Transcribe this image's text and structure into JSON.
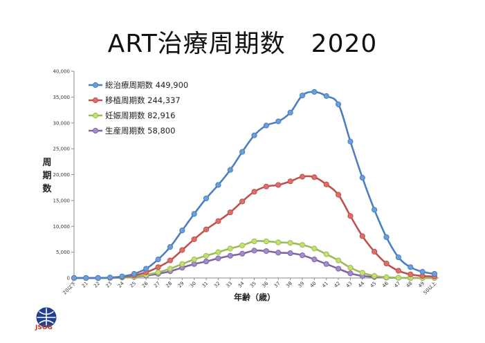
{
  "slide": {
    "title": "ART治療周期数　2020",
    "logo_text": "JSOG"
  },
  "chart_data": {
    "type": "line",
    "xlabel": "年齢（歳）",
    "ylabel": "周\n期\n数",
    "ylim": [
      0,
      40000
    ],
    "yticks": [
      "0",
      "5,000",
      "10,000",
      "15,000",
      "20,000",
      "25,000",
      "30,000",
      "35,000",
      "40,000"
    ],
    "categories": [
      "20以下",
      "21",
      "22",
      "23",
      "24",
      "25",
      "26",
      "27",
      "28",
      "29",
      "30",
      "31",
      "32",
      "33",
      "34",
      "35",
      "36",
      "37",
      "38",
      "39",
      "40",
      "41",
      "42",
      "43",
      "44",
      "45",
      "46",
      "47",
      "48",
      "49",
      "50以上"
    ],
    "grid": false,
    "legend_position": "top-left",
    "series": [
      {
        "name": "総治療周期数 449,900",
        "color": "#4a7fc1",
        "fill": "#6a9fd8",
        "values": [
          0,
          0,
          0,
          100,
          300,
          800,
          1800,
          3600,
          6000,
          9200,
          12400,
          15400,
          18000,
          20900,
          24400,
          27600,
          29500,
          30300,
          32000,
          35300,
          36000,
          35200,
          33600,
          26400,
          19400,
          13200,
          7900,
          4000,
          2100,
          1200,
          800
        ]
      },
      {
        "name": "移植周期数 244,337",
        "color": "#c0504d",
        "fill": "#d9706c",
        "values": [
          0,
          0,
          0,
          50,
          200,
          500,
          1100,
          2100,
          3400,
          5400,
          7500,
          9400,
          11000,
          12700,
          14800,
          16700,
          17700,
          18000,
          18700,
          19600,
          19500,
          18100,
          16100,
          12000,
          8100,
          5100,
          2800,
          1400,
          700,
          400,
          300
        ]
      },
      {
        "name": "妊娠周期数 82,916",
        "color": "#9bbb59",
        "fill": "#c6e06d",
        "values": [
          0,
          0,
          0,
          30,
          100,
          250,
          600,
          1100,
          1800,
          2700,
          3600,
          4300,
          5000,
          5700,
          6300,
          7100,
          7100,
          6900,
          6800,
          6400,
          5700,
          4600,
          3400,
          2000,
          1000,
          400,
          150,
          50,
          30,
          10,
          10
        ]
      },
      {
        "name": "生産周期数 58,800",
        "color": "#8064a2",
        "fill": "#a68bcc",
        "values": [
          0,
          0,
          0,
          20,
          80,
          200,
          450,
          800,
          1300,
          2000,
          2700,
          3200,
          3800,
          4300,
          4700,
          5300,
          5200,
          4900,
          4800,
          4400,
          3600,
          2700,
          1800,
          900,
          400,
          200,
          80,
          30,
          10,
          5,
          5
        ]
      }
    ]
  }
}
